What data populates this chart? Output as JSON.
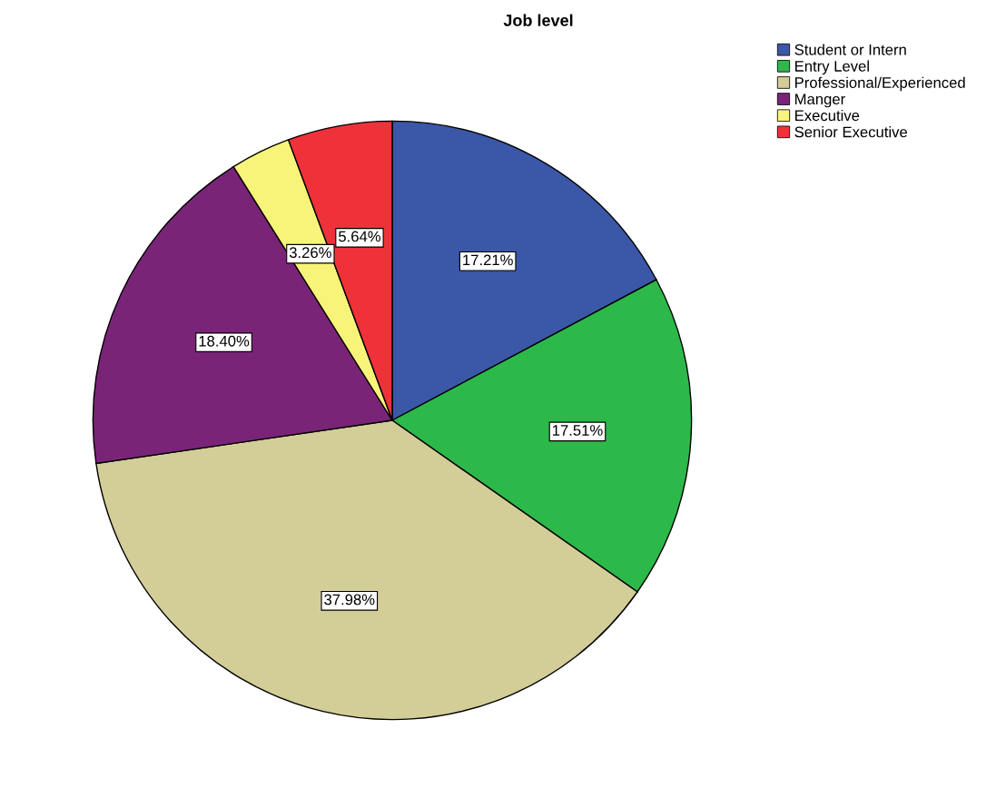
{
  "chart_data": {
    "type": "pie",
    "title": "Job level",
    "categories": [
      "Student or Intern",
      "Entry Level",
      "Professional/Experienced",
      "Manger",
      "Executive",
      "Senior Executive"
    ],
    "values": [
      17.21,
      17.51,
      37.98,
      18.4,
      3.26,
      5.64
    ],
    "value_labels": [
      "17.21%",
      "17.51%",
      "37.98%",
      "18.40%",
      "3.26%",
      "5.64%"
    ],
    "colors": [
      "#3b57a8",
      "#2db84a",
      "#d3cd98",
      "#7a2478",
      "#f8f47a",
      "#ef323a"
    ],
    "legend": "top right"
  }
}
